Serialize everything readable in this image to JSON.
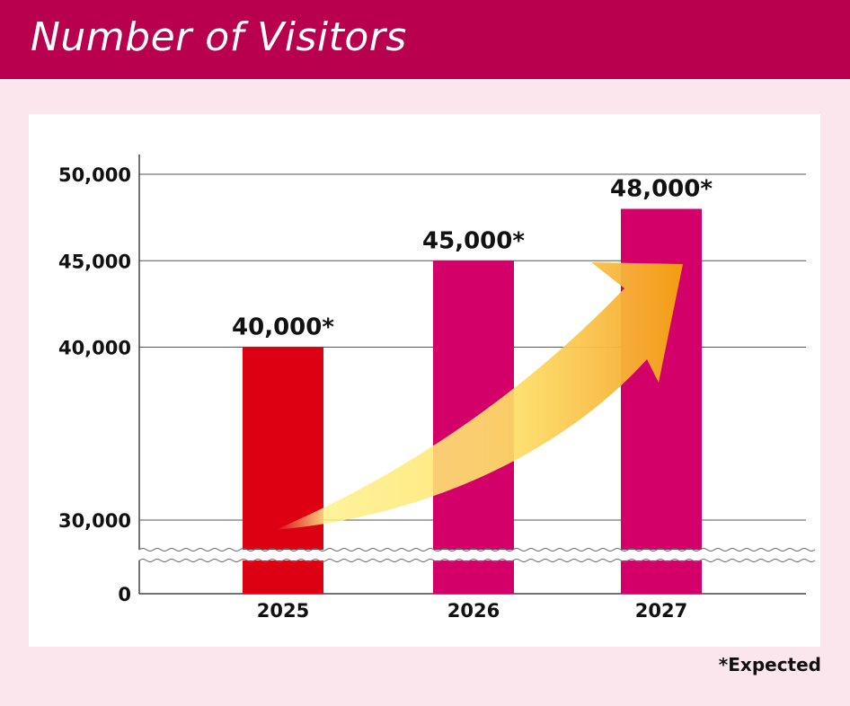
{
  "header": {
    "title": "Number of Visitors"
  },
  "footnote": "*Expected",
  "colors": {
    "header": "#b8004f",
    "background": "#fbe6ee",
    "bar_first": "#dc0012",
    "bar_other": "#d4006a"
  },
  "chart_data": {
    "type": "bar",
    "title": "Number of Visitors",
    "categories": [
      "2025",
      "2026",
      "2027"
    ],
    "values": [
      40000,
      45000,
      48000
    ],
    "data_labels": [
      "40,000*",
      "45,000*",
      "48,000*"
    ],
    "y_ticks": [
      {
        "value": 0,
        "label": "0"
      },
      {
        "value": 30000,
        "label": "30,000"
      },
      {
        "value": 40000,
        "label": "40,000"
      },
      {
        "value": 45000,
        "label": "45,000"
      },
      {
        "value": 50000,
        "label": "50,000"
      }
    ],
    "axis_break": true,
    "grid": true,
    "trend_arrow": true,
    "xlabel": "",
    "ylabel": ""
  }
}
